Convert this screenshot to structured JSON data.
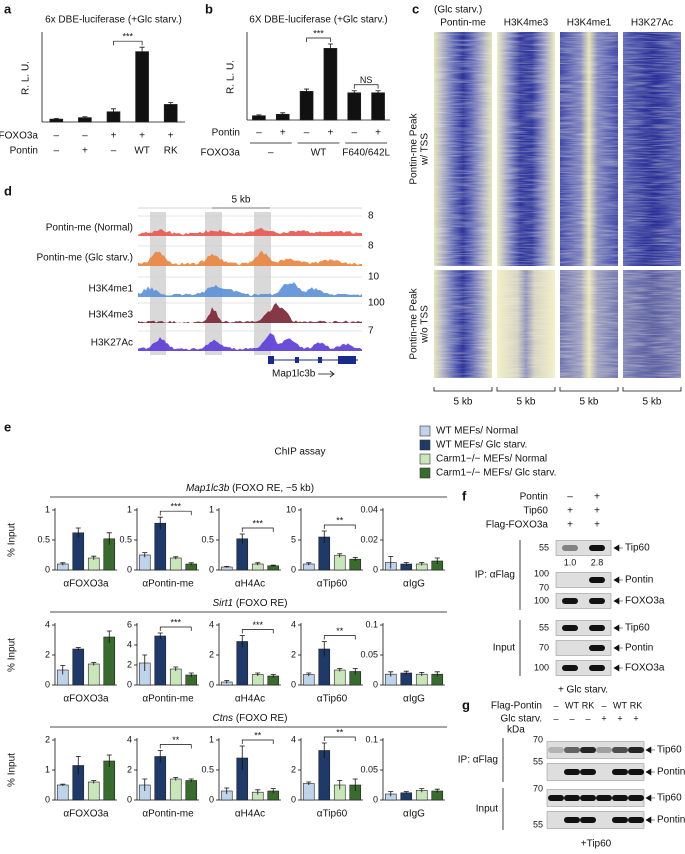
{
  "panel_labels": [
    "a",
    "b",
    "c",
    "d",
    "e",
    "f",
    "g"
  ],
  "chart_data": [
    {
      "type": "bar",
      "title": "6x DBE-luciferase (+Glc starv.)",
      "ylabel": "R. L. U.",
      "values": [
        1,
        1.5,
        3.5,
        24,
        6
      ],
      "errors": [
        0.2,
        0.3,
        1,
        1.5,
        0.6
      ],
      "color": "#111111",
      "ylim": [
        0,
        30
      ],
      "significance": [
        {
          "label": "***",
          "bars": [
            2,
            3
          ]
        }
      ],
      "condition_rows": [
        {
          "label": "FOXO3a",
          "values": [
            "–",
            "–",
            "+",
            "+",
            "+"
          ]
        },
        {
          "label": "Pontin",
          "values": [
            "–",
            "+",
            "–",
            "WT",
            "RK"
          ]
        }
      ]
    },
    {
      "type": "bar",
      "title": "6X DBE-luciferase (+Glc starv.)",
      "ylabel": "R. L. U.",
      "values": [
        1.5,
        2,
        10,
        25,
        9.5,
        9.5
      ],
      "errors": [
        0.3,
        0.5,
        0.8,
        1.5,
        0.7,
        0.7
      ],
      "color": "#111111",
      "ylim": [
        0,
        30
      ],
      "significance": [
        {
          "label": "***",
          "bars": [
            2,
            3
          ]
        },
        {
          "label": "NS",
          "bars": [
            4,
            5
          ]
        }
      ],
      "condition_rows": [
        {
          "label": "Pontin",
          "values": [
            "–",
            "+",
            "–",
            "+",
            "–",
            "+"
          ]
        }
      ],
      "condition_groups": {
        "label": "FOXO3a",
        "groups": [
          {
            "label": "–",
            "bars": [
              0,
              1
            ]
          },
          {
            "label": "WT",
            "bars": [
              2,
              3
            ]
          },
          {
            "label": "F640/642L",
            "bars": [
              4,
              5
            ]
          }
        ]
      }
    },
    {
      "type": "bar",
      "xlabel": "αFOXO3a",
      "values": [
        0.1,
        0.62,
        0.2,
        0.52
      ],
      "errors": [
        0.02,
        0.08,
        0.03,
        0.1
      ],
      "ylim": [
        0,
        1
      ],
      "yticks": [
        0,
        0.5,
        1
      ]
    },
    {
      "type": "bar",
      "xlabel": "αPontin-me",
      "values": [
        0.25,
        0.78,
        0.2,
        0.1
      ],
      "errors": [
        0.04,
        0.1,
        0.02,
        0.02
      ],
      "ylim": [
        0,
        1
      ],
      "yticks": [
        0,
        0.5,
        1
      ],
      "significance": [
        {
          "label": "***",
          "bars": [
            1,
            3
          ]
        }
      ]
    },
    {
      "type": "bar",
      "xlabel": "αH4Ac",
      "values": [
        0.05,
        0.52,
        0.1,
        0.07
      ],
      "errors": [
        0.01,
        0.08,
        0.02,
        0.01
      ],
      "ylim": [
        0,
        1
      ],
      "yticks": [
        0,
        0.5,
        1
      ],
      "significance": [
        {
          "label": "***",
          "bars": [
            1,
            3
          ]
        }
      ]
    },
    {
      "type": "bar",
      "xlabel": "αTip60",
      "values": [
        1,
        5.5,
        2.4,
        1.8
      ],
      "errors": [
        0.2,
        1,
        0.3,
        0.3
      ],
      "ylim": [
        0,
        10
      ],
      "yticks": [
        0,
        5,
        10
      ],
      "significance": [
        {
          "label": "**",
          "bars": [
            1,
            3
          ]
        }
      ]
    },
    {
      "type": "bar",
      "xlabel": "αIgG",
      "values": [
        0.005,
        0.004,
        0.004,
        0.006
      ],
      "errors": [
        0.004,
        0.001,
        0.001,
        0.002
      ],
      "ylim": [
        0,
        0.04
      ],
      "yticks": [
        0,
        0.02,
        0.04
      ]
    },
    {
      "type": "bar",
      "xlabel": "αFOXO3a",
      "values": [
        1,
        2.4,
        1.4,
        3.2
      ],
      "errors": [
        0.3,
        0.1,
        0.1,
        0.4
      ],
      "ylim": [
        0,
        4
      ],
      "yticks": [
        0,
        2,
        4
      ]
    },
    {
      "type": "bar",
      "xlabel": "αPontin-me",
      "values": [
        2.2,
        4.9,
        1.6,
        1.0
      ],
      "errors": [
        0.8,
        0.3,
        0.2,
        0.2
      ],
      "ylim": [
        0,
        6
      ],
      "yticks": [
        0,
        2,
        4,
        6
      ],
      "significance": [
        {
          "label": "***",
          "bars": [
            1,
            3
          ]
        }
      ]
    },
    {
      "type": "bar",
      "xlabel": "αH4Ac",
      "values": [
        0.2,
        2.9,
        0.7,
        0.6
      ],
      "errors": [
        0.1,
        0.4,
        0.1,
        0.1
      ],
      "ylim": [
        0,
        4
      ],
      "yticks": [
        0,
        2,
        4
      ],
      "significance": [
        {
          "label": "***",
          "bars": [
            1,
            3
          ]
        }
      ]
    },
    {
      "type": "bar",
      "xlabel": "αTip60",
      "values": [
        0.7,
        2.4,
        1.0,
        0.9
      ],
      "errors": [
        0.1,
        0.5,
        0.1,
        0.2
      ],
      "ylim": [
        0,
        4
      ],
      "yticks": [
        0,
        2,
        4
      ],
      "significance": [
        {
          "label": "**",
          "bars": [
            1,
            3
          ]
        }
      ]
    },
    {
      "type": "bar",
      "xlabel": "αIgG",
      "values": [
        0.018,
        0.02,
        0.018,
        0.018
      ],
      "errors": [
        0.004,
        0.003,
        0.003,
        0.004
      ],
      "ylim": [
        0,
        0.1
      ],
      "yticks": [
        0,
        0.05,
        0.1
      ]
    },
    {
      "type": "bar",
      "xlabel": "αFOXO3a",
      "values": [
        0.5,
        1.15,
        0.6,
        1.3
      ],
      "errors": [
        0.03,
        0.3,
        0.05,
        0.2
      ],
      "ylim": [
        0,
        2
      ],
      "yticks": [
        0,
        1,
        2
      ]
    },
    {
      "type": "bar",
      "xlabel": "αPontin-me",
      "values": [
        1,
        2.9,
        1.4,
        1.3
      ],
      "errors": [
        0.4,
        0.4,
        0.1,
        0.1
      ],
      "ylim": [
        0,
        4
      ],
      "yticks": [
        0,
        2,
        4
      ],
      "significance": [
        {
          "label": "**",
          "bars": [
            1,
            3
          ]
        }
      ]
    },
    {
      "type": "bar",
      "xlabel": "αH4Ac",
      "values": [
        0.15,
        0.7,
        0.13,
        0.15
      ],
      "errors": [
        0.05,
        0.2,
        0.04,
        0.04
      ],
      "ylim": [
        0,
        1
      ],
      "yticks": [
        0,
        0.5,
        1
      ],
      "significance": [
        {
          "label": "**",
          "bars": [
            1,
            3
          ]
        }
      ]
    },
    {
      "type": "bar",
      "xlabel": "αTip60",
      "values": [
        1.1,
        3.3,
        1.0,
        1.0
      ],
      "errors": [
        0.1,
        0.5,
        0.3,
        0.4
      ],
      "ylim": [
        0,
        4
      ],
      "yticks": [
        0,
        2,
        4
      ],
      "significance": [
        {
          "label": "**",
          "bars": [
            1,
            3
          ]
        }
      ]
    },
    {
      "type": "bar",
      "xlabel": "αIgG",
      "values": [
        0.01,
        0.012,
        0.016,
        0.015
      ],
      "errors": [
        0.004,
        0.002,
        0.003,
        0.003
      ],
      "ylim": [
        0,
        0.1
      ],
      "yticks": [
        0,
        0.05,
        0.1
      ]
    }
  ],
  "heatmap": {
    "condition": "(Glc starv.)",
    "columns": [
      "Pontin-me",
      "H3K4me3",
      "H3K4me1",
      "H3K27Ac"
    ],
    "row_groups": [
      [
        "Pontin-me Peak",
        "w/ TSS"
      ],
      [
        "Pontin-me Peak",
        "w/o TSS"
      ]
    ],
    "scale": "5 kb"
  },
  "tracks": {
    "scale_bar": "5 kb",
    "gene": "Map1lc3b",
    "tracks": [
      {
        "name": "Pontin-me (Normal)",
        "scale": 8,
        "color": "#e8564f"
      },
      {
        "name": "Pontin-me (Glc starv.)",
        "scale": 8,
        "color": "#e8843f"
      },
      {
        "name": "H3K4me1",
        "scale": 10,
        "color": "#5b8fd6"
      },
      {
        "name": "H3K4me3",
        "scale": 100,
        "color": "#7a2232"
      },
      {
        "name": "H3K27Ac",
        "scale": 7,
        "color": "#5a3bd6"
      }
    ]
  },
  "chip_assay": {
    "title": "ChIP assay",
    "series": [
      {
        "name": "WT MEFs/ Normal",
        "color": "#bfd3ea"
      },
      {
        "name": "WT MEFs/ Glc starv.",
        "color": "#1f3a68"
      },
      {
        "name": "Carm1−/− MEFs/ Normal",
        "color": "#c8e6b9"
      },
      {
        "name": "Carm1−/− MEFs/ Glc starv.",
        "color": "#3a6b2e"
      }
    ],
    "rows": [
      {
        "gene": "Map1lc3b",
        "site": "(FOXO RE, −5 kb)",
        "ylabel": "% Input"
      },
      {
        "gene": "Sirt1",
        "site": "(FOXO RE)",
        "ylabel": "% Input"
      },
      {
        "gene": "Ctns",
        "site": "(FOXO RE)",
        "ylabel": "% Input"
      }
    ]
  },
  "blot_f": {
    "lane_rows": [
      {
        "label": "Pontin",
        "lanes": [
          "–",
          "+"
        ]
      },
      {
        "label": "Tip60",
        "lanes": [
          "+",
          "+"
        ]
      },
      {
        "label": "Flag-FOXO3a",
        "lanes": [
          "+",
          "+"
        ]
      }
    ],
    "sections": [
      {
        "label": "IP: αFlag",
        "bands": [
          "Tip60",
          "Pontin",
          "FOXO3a"
        ]
      },
      {
        "label": "Input",
        "bands": [
          "Tip60",
          "Pontin",
          "FOXO3a"
        ]
      }
    ],
    "quantification": [
      "1.0",
      "2.8"
    ],
    "markers": [
      55,
      100,
      70,
      100,
      55,
      70,
      100
    ],
    "footer": "+ Glc starv."
  },
  "blot_g": {
    "lane_rows": [
      {
        "label": "Flag-Pontin",
        "lanes": [
          "–",
          "WT",
          "RK",
          "–",
          "WT",
          "RK"
        ]
      },
      {
        "label": "Glc starv.",
        "lanes": [
          "–",
          "–",
          "–",
          "+",
          "+",
          "+"
        ]
      }
    ],
    "unit": "kDa",
    "sections": [
      {
        "label": "IP: αFlag",
        "bands": [
          "Tip60",
          "Pontin"
        ]
      },
      {
        "label": "Input",
        "bands": [
          "Tip60",
          "Pontin"
        ]
      }
    ],
    "markers": [
      70,
      55,
      70,
      55
    ],
    "footer": "+Tip60"
  }
}
